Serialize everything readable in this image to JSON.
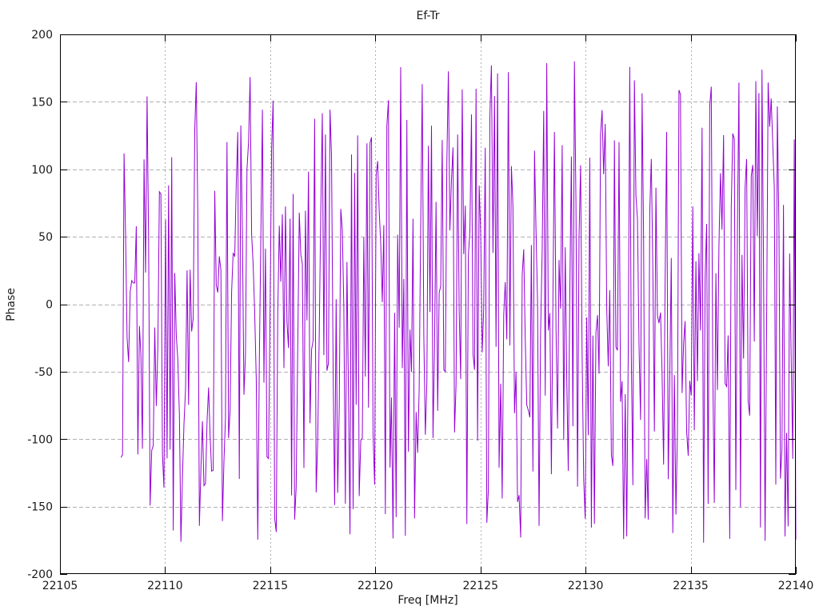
{
  "chart_data": {
    "type": "line",
    "title": "Ef-Tr",
    "xlabel": "Freq [MHz]",
    "ylabel": "Phase",
    "xlim": [
      22105,
      22140
    ],
    "ylim": [
      -200,
      200
    ],
    "x_ticks": [
      22105,
      22110,
      22115,
      22120,
      22125,
      22130,
      22135,
      22140
    ],
    "y_ticks": [
      -200,
      -150,
      -100,
      -50,
      0,
      50,
      100,
      150,
      200
    ],
    "grid": true,
    "legend": "none",
    "series": [
      {
        "name": "Ef-Tr",
        "color": "#9400d3",
        "x_start": 22107.9,
        "x_end": 22140.0,
        "n_points": 440,
        "y_min": -180,
        "y_max": 180,
        "distribution": "uniform-random-phase-noise",
        "seed": 1337
      }
    ],
    "colors": {
      "trace": "#9400d3",
      "grid": "#b0b0b0",
      "frame": "#000000",
      "text": "#1a1a1a",
      "background": "#ffffff"
    }
  }
}
